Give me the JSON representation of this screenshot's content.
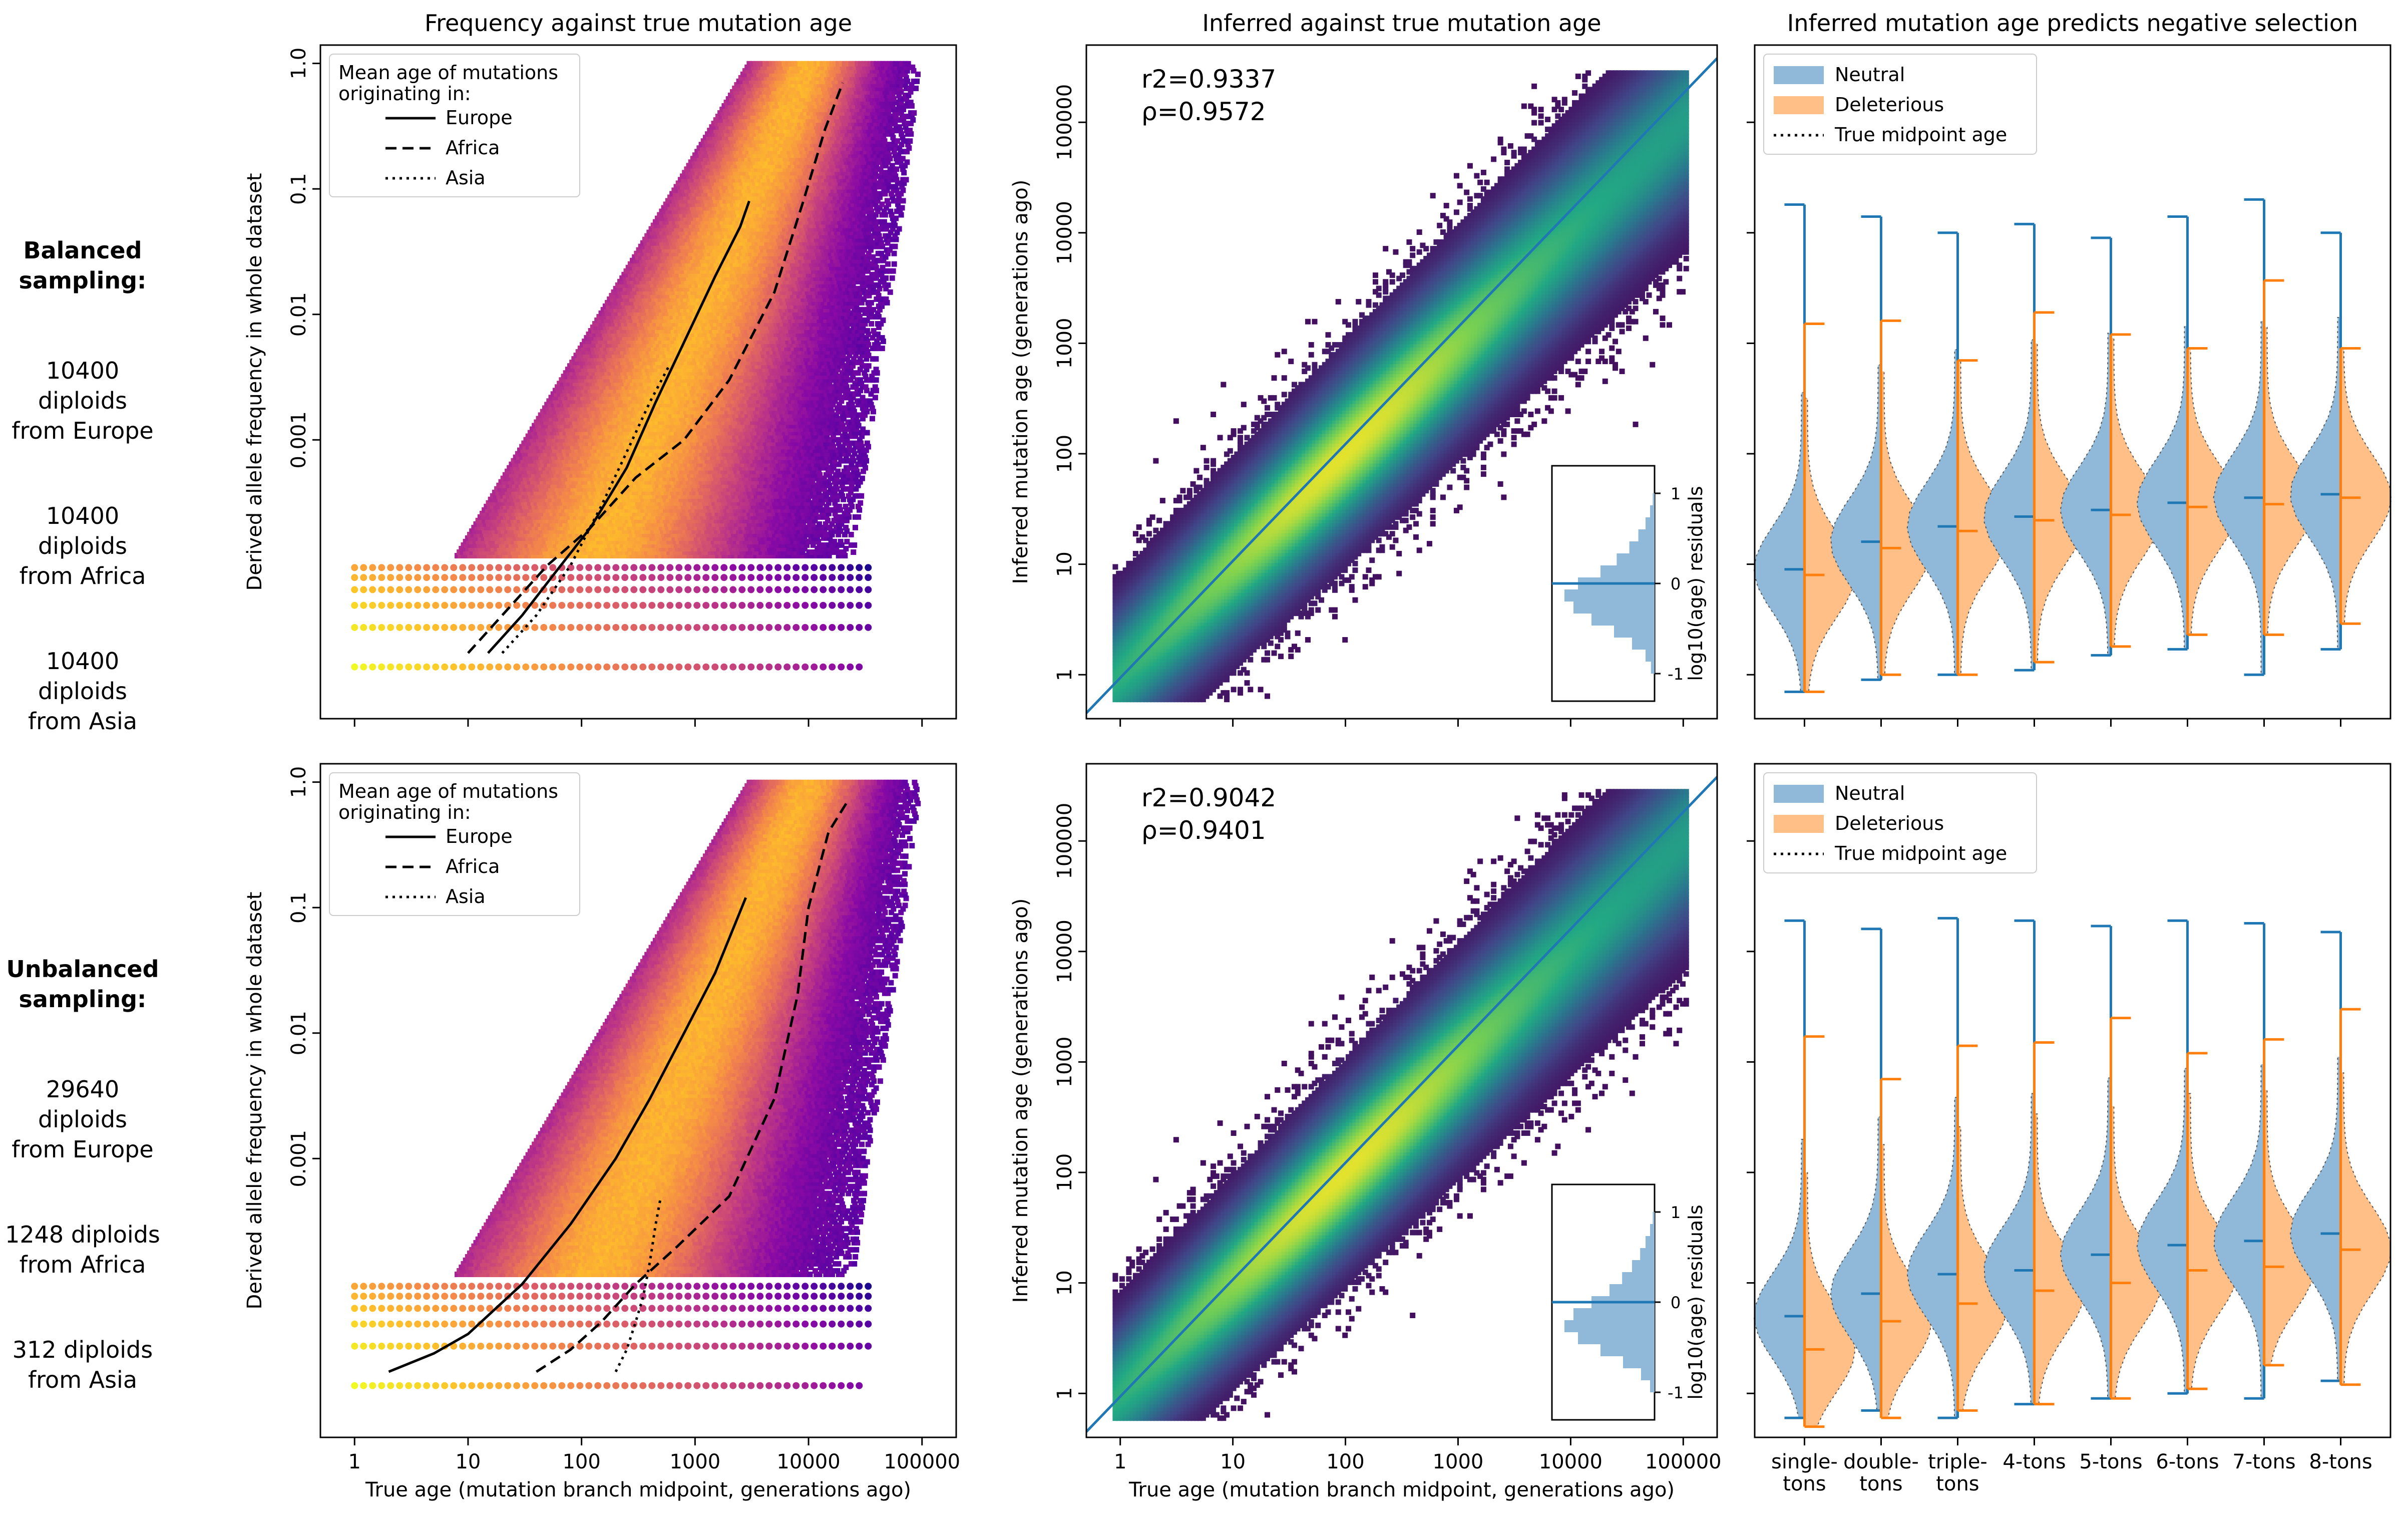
{
  "row_labels": [
    {
      "header": "Balanced sampling:",
      "lines": [
        "10400 diploids\nfrom Europe",
        "10400 diploids\nfrom Africa",
        "10400 diploids\nfrom Asia"
      ]
    },
    {
      "header": "Unbalanced sampling:",
      "lines": [
        "29640 diploids\nfrom Europe",
        "1248 diploids\nfrom Africa",
        "312 diploids\nfrom Asia"
      ]
    }
  ],
  "chart_data": [
    {
      "type": "heatmap",
      "panel": "A1",
      "title": "Frequency against true mutation age",
      "xlabel": "",
      "ylabel": "Derived allele frequency in whole dataset",
      "x_scale": "log",
      "y_scale": "log",
      "xlim": [
        0.5,
        200000
      ],
      "ylim": [
        6e-06,
        1.4
      ],
      "xticks": [
        1,
        10,
        100,
        1000,
        10000,
        100000
      ],
      "xticklabels": [
        "",
        "",
        "",
        "",
        "",
        ""
      ],
      "yticks": [
        0.001,
        0.01,
        0.1,
        1.0
      ],
      "yticklabels": [
        "0.001",
        "0.01",
        "0.1",
        "1.0"
      ],
      "legend": {
        "title": "Mean age of mutations\noriginating in:",
        "placement": "top-left",
        "entries": [
          {
            "label": "Europe",
            "style": "solid"
          },
          {
            "label": "Africa",
            "style": "dashed"
          },
          {
            "label": "Asia",
            "style": "dotted"
          }
        ]
      },
      "series": [
        {
          "name": "Europe",
          "style": "solid",
          "x": [
            15,
            30,
            60,
            120,
            250,
            450,
            800,
            1500,
            2500,
            3000
          ],
          "y": [
            2e-05,
            4e-05,
            9e-05,
            0.0002,
            0.0006,
            0.002,
            0.006,
            0.02,
            0.05,
            0.08
          ]
        },
        {
          "name": "Africa",
          "style": "dashed",
          "x": [
            10,
            20,
            50,
            120,
            300,
            800,
            2000,
            5000,
            9000,
            14000,
            20000
          ],
          "y": [
            2e-05,
            4e-05,
            0.0001,
            0.0002,
            0.0005,
            0.001,
            0.003,
            0.015,
            0.08,
            0.3,
            0.7
          ]
        },
        {
          "name": "Asia",
          "style": "dotted",
          "x": [
            20,
            40,
            80,
            150,
            250,
            400,
            600
          ],
          "y": [
            2e-05,
            4e-05,
            0.0001,
            0.0003,
            0.0008,
            0.002,
            0.004
          ]
        }
      ]
    },
    {
      "type": "heatmap",
      "panel": "B1",
      "title": "Inferred against true mutation age",
      "xlabel": "",
      "ylabel": "Inferred mutation age (generations ago)",
      "x_scale": "log",
      "y_scale": "log",
      "xlim": [
        0.5,
        200000
      ],
      "ylim": [
        0.4,
        500000
      ],
      "xticks": [
        1,
        10,
        100,
        1000,
        10000,
        100000
      ],
      "xticklabels": [
        "",
        "",
        "",
        "",
        "",
        ""
      ],
      "yticks": [
        1,
        10,
        100,
        1000,
        10000,
        100000
      ],
      "yticklabels": [
        "1",
        "10",
        "100",
        "1000",
        "10000",
        "100000"
      ],
      "annotations": [
        "r2=0.9337",
        "ρ=0.9572"
      ],
      "inset": {
        "ylabel": "log10(age) residuals",
        "yticks": [
          -1,
          0,
          1
        ],
        "yticklabels": [
          "-1",
          "0",
          "1"
        ],
        "hist": [
          0.02,
          0.05,
          0.1,
          0.18,
          0.28,
          0.42,
          0.6,
          0.85,
          1.0,
          0.9,
          0.7,
          0.45,
          0.25,
          0.1,
          0.04
        ]
      },
      "diagonal": "y=x"
    },
    {
      "type": "violin",
      "panel": "C1",
      "title": "Inferred mutation age predicts negative selection",
      "categories": [
        "single-tons",
        "double-tons",
        "triple-tons",
        "4-tons",
        "5-tons",
        "6-tons",
        "7-tons",
        "8-tons"
      ],
      "xticklabels": [
        "",
        "",
        "",
        "",
        "",
        "",
        "",
        ""
      ],
      "legend": {
        "placement": "top-left",
        "entries": [
          {
            "label": "Neutral",
            "color": "#1f77b4"
          },
          {
            "label": "Deleterious",
            "color": "#ff7f0e"
          },
          {
            "label": "True midpoint age",
            "style": "dotted"
          }
        ]
      },
      "y_scale": "log",
      "ylim": [
        0.4,
        500000
      ],
      "neutral": [
        {
          "min": 0.7,
          "max": 18000,
          "median": 9
        },
        {
          "min": 0.9,
          "max": 14000,
          "median": 16
        },
        {
          "min": 1.0,
          "max": 10000,
          "median": 22
        },
        {
          "min": 1.1,
          "max": 12000,
          "median": 27
        },
        {
          "min": 1.5,
          "max": 9000,
          "median": 31
        },
        {
          "min": 1.7,
          "max": 14000,
          "median": 36
        },
        {
          "min": 1.0,
          "max": 20000,
          "median": 40
        },
        {
          "min": 1.7,
          "max": 10000,
          "median": 43
        }
      ],
      "deleterious": [
        {
          "min": 0.7,
          "max": 1500,
          "median": 8
        },
        {
          "min": 1.0,
          "max": 1600,
          "median": 14
        },
        {
          "min": 1.0,
          "max": 700,
          "median": 20
        },
        {
          "min": 1.3,
          "max": 1900,
          "median": 25
        },
        {
          "min": 1.8,
          "max": 1200,
          "median": 28
        },
        {
          "min": 2.3,
          "max": 900,
          "median": 33
        },
        {
          "min": 2.3,
          "max": 3700,
          "median": 35
        },
        {
          "min": 2.9,
          "max": 900,
          "median": 40
        }
      ]
    },
    {
      "type": "heatmap",
      "panel": "A2",
      "title": "",
      "xlabel": "True age (mutation branch midpoint, generations ago)",
      "ylabel": "Derived allele frequency in whole dataset",
      "x_scale": "log",
      "y_scale": "log",
      "xlim": [
        0.5,
        200000
      ],
      "ylim": [
        6e-06,
        1.4
      ],
      "xticks": [
        1,
        10,
        100,
        1000,
        10000,
        100000
      ],
      "xticklabels": [
        "1",
        "10",
        "100",
        "1000",
        "10000",
        "100000"
      ],
      "yticks": [
        0.001,
        0.01,
        0.1,
        1.0
      ],
      "yticklabels": [
        "0.001",
        "0.01",
        "0.1",
        "1.0"
      ],
      "legend": {
        "title": "Mean age of mutations\noriginating in:",
        "placement": "top-left",
        "entries": [
          {
            "label": "Europe",
            "style": "solid"
          },
          {
            "label": "Africa",
            "style": "dashed"
          },
          {
            "label": "Asia",
            "style": "dotted"
          }
        ]
      },
      "series": [
        {
          "name": "Europe",
          "style": "solid",
          "x": [
            2,
            5,
            10,
            30,
            80,
            200,
            400,
            800,
            1500,
            2800
          ],
          "y": [
            2e-05,
            2.8e-05,
            4e-05,
            0.0001,
            0.0003,
            0.001,
            0.003,
            0.01,
            0.03,
            0.12
          ]
        },
        {
          "name": "Africa",
          "style": "dashed",
          "x": [
            40,
            80,
            150,
            300,
            700,
            2000,
            5000,
            8000,
            10000,
            15000,
            22000
          ],
          "y": [
            2e-05,
            3e-05,
            5e-05,
            0.0001,
            0.0002,
            0.0005,
            0.003,
            0.02,
            0.1,
            0.4,
            0.7
          ]
        },
        {
          "name": "Asia",
          "style": "dotted",
          "x": [
            200,
            250,
            300,
            350,
            400,
            450,
            500
          ],
          "y": [
            2e-05,
            3e-05,
            5e-05,
            8e-05,
            0.00015,
            0.0003,
            0.0005
          ]
        }
      ]
    },
    {
      "type": "heatmap",
      "panel": "B2",
      "title": "",
      "xlabel": "True age (mutation branch midpoint, generations ago)",
      "ylabel": "Inferred mutation age (generations ago)",
      "x_scale": "log",
      "y_scale": "log",
      "xlim": [
        0.5,
        200000
      ],
      "ylim": [
        0.4,
        500000
      ],
      "xticks": [
        1,
        10,
        100,
        1000,
        10000,
        100000
      ],
      "xticklabels": [
        "1",
        "10",
        "100",
        "1000",
        "10000",
        "100000"
      ],
      "yticks": [
        1,
        10,
        100,
        1000,
        10000,
        100000
      ],
      "yticklabels": [
        "1",
        "10",
        "100",
        "1000",
        "10000",
        "100000"
      ],
      "annotations": [
        "r2=0.9042",
        "ρ=0.9401"
      ],
      "inset": {
        "ylabel": "log10(age) residuals",
        "yticks": [
          -1,
          0,
          1
        ],
        "yticklabels": [
          "-1",
          "0",
          "1"
        ],
        "hist": [
          0.02,
          0.05,
          0.1,
          0.16,
          0.25,
          0.36,
          0.5,
          0.7,
          0.9,
          1.0,
          0.85,
          0.6,
          0.35,
          0.15,
          0.05
        ]
      },
      "diagonal": "y=x"
    },
    {
      "type": "violin",
      "panel": "C2",
      "title": "",
      "categories": [
        "single-\ntons",
        "double-\ntons",
        "triple-\ntons",
        "4-tons",
        "5-tons",
        "6-tons",
        "7-tons",
        "8-tons"
      ],
      "xticklabels": [
        "single-\ntons",
        "double-\ntons",
        "triple-\ntons",
        "4-tons",
        "5-tons",
        "6-tons",
        "7-tons",
        "8-tons"
      ],
      "legend": {
        "placement": "top-left",
        "entries": [
          {
            "label": "Neutral",
            "color": "#1f77b4"
          },
          {
            "label": "Deleterious",
            "color": "#ff7f0e"
          },
          {
            "label": "True midpoint age",
            "style": "dotted"
          }
        ]
      },
      "y_scale": "log",
      "ylim": [
        0.4,
        500000
      ],
      "neutral": [
        {
          "min": 0.6,
          "max": 19000,
          "median": 5
        },
        {
          "min": 0.7,
          "max": 16000,
          "median": 8
        },
        {
          "min": 0.6,
          "max": 20000,
          "median": 12
        },
        {
          "min": 0.8,
          "max": 19000,
          "median": 13
        },
        {
          "min": 0.9,
          "max": 17000,
          "median": 18
        },
        {
          "min": 1.0,
          "max": 19000,
          "median": 22
        },
        {
          "min": 0.9,
          "max": 18000,
          "median": 24
        },
        {
          "min": 1.3,
          "max": 15000,
          "median": 28
        }
      ],
      "deleterious": [
        {
          "min": 0.5,
          "max": 1700,
          "median": 2.5
        },
        {
          "min": 0.6,
          "max": 700,
          "median": 4.5
        },
        {
          "min": 0.7,
          "max": 1400,
          "median": 6.5
        },
        {
          "min": 0.8,
          "max": 1500,
          "median": 8.5
        },
        {
          "min": 0.9,
          "max": 2500,
          "median": 10
        },
        {
          "min": 1.1,
          "max": 1200,
          "median": 13
        },
        {
          "min": 1.8,
          "max": 1600,
          "median": 14
        },
        {
          "min": 1.2,
          "max": 3000,
          "median": 20
        }
      ]
    }
  ],
  "colors": {
    "neutral": "#1f77b4",
    "deleterious": "#ff7f0e",
    "neutral_fill": "#8fb8d9",
    "deleterious_fill": "#ffbf86"
  }
}
